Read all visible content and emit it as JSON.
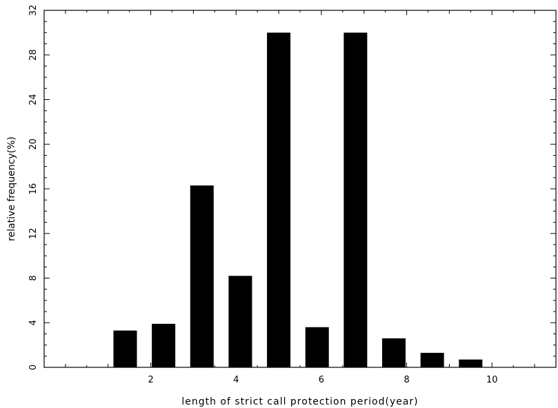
{
  "chart_data": {
    "type": "bar",
    "xlabel": "length of strict call protection period(year)",
    "ylabel": "relative frequency(%)",
    "x": [
      1.4,
      2.3,
      3.2,
      4.1,
      5.0,
      5.9,
      6.8,
      7.7,
      8.6,
      9.5
    ],
    "values": [
      3.3,
      3.9,
      16.3,
      8.2,
      30.0,
      3.6,
      30.0,
      2.6,
      1.3,
      0.7
    ],
    "xlim": [
      -0.5,
      11.5
    ],
    "ylim": [
      0,
      32
    ],
    "xticks": [
      2,
      4,
      6,
      8,
      10
    ],
    "yticks": [
      0,
      4,
      8,
      12,
      16,
      20,
      24,
      28,
      32
    ],
    "bar_color": "#000000",
    "grid": false
  }
}
